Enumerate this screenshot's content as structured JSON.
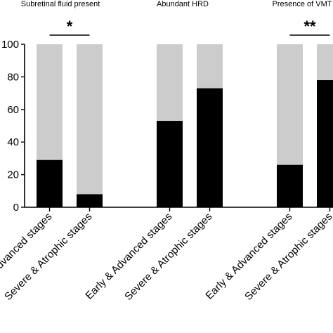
{
  "chart_data": {
    "type": "bar",
    "stacked_to": 100,
    "ylim": [
      0,
      100
    ],
    "yticks": [
      "0",
      "20",
      "40",
      "60",
      "80",
      "100"
    ],
    "grid": false,
    "colors": {
      "value": "#000000",
      "remainder": "#cccccc"
    },
    "panels": [
      {
        "title": "Subretinal fluid present",
        "categories": [
          "Early & Advanced stages",
          "Severe & Atrophic stages"
        ],
        "values": [
          29,
          8
        ],
        "significance": "*"
      },
      {
        "title": "Abundant HRD",
        "categories": [
          "Early & Advanced stages",
          "Severe & Atrophic stages"
        ],
        "values": [
          53,
          73
        ],
        "significance": ""
      },
      {
        "title": "Presence of VMT",
        "categories": [
          "Early & Advanced stages",
          "Severe & Atrophic stages"
        ],
        "values": [
          26,
          78
        ],
        "significance": "**"
      }
    ]
  }
}
